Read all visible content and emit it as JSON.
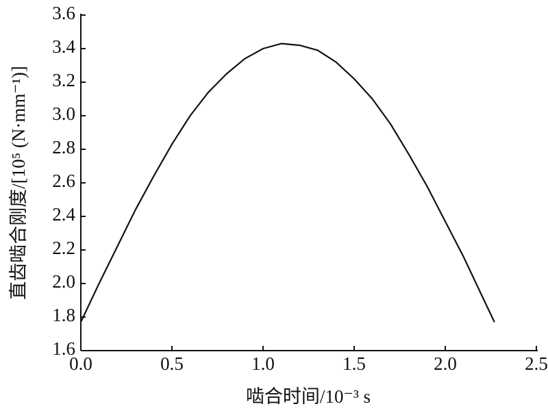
{
  "chart_data": {
    "type": "line",
    "xlabel": "啮合时间/10⁻³ s",
    "ylabel": "直齿啮合刚度/[10⁵ (N·mm⁻¹)]",
    "x": [
      0,
      0.1,
      0.2,
      0.3,
      0.4,
      0.5,
      0.6,
      0.7,
      0.8,
      0.9,
      1.0,
      1.1,
      1.2,
      1.3,
      1.4,
      1.5,
      1.6,
      1.7,
      1.8,
      1.9,
      2.0,
      2.1,
      2.2,
      2.27
    ],
    "series": [
      {
        "color": "#111111",
        "values": [
          1.77,
          2.0,
          2.22,
          2.44,
          2.64,
          2.83,
          3.0,
          3.14,
          3.25,
          3.34,
          3.4,
          3.43,
          3.42,
          3.39,
          3.32,
          3.22,
          3.1,
          2.95,
          2.77,
          2.58,
          2.37,
          2.16,
          1.93,
          1.77
        ]
      }
    ],
    "xlim": [
      0,
      2.5
    ],
    "xticks": [
      {
        "value": 0,
        "label": "0.0"
      },
      0.5,
      {
        "value": 1,
        "label": "1.0"
      },
      1.5,
      {
        "value": 2,
        "label": "2.0"
      },
      2.5
    ],
    "ylim": [
      1.6,
      3.6
    ],
    "yticks": [
      1.6,
      1.8,
      {
        "value": 2,
        "label": "2.0"
      },
      2.2,
      2.4,
      2.6,
      2.8,
      {
        "value": 3,
        "label": "3.0"
      },
      3.2,
      3.4,
      3.6
    ],
    "grid": false
  }
}
